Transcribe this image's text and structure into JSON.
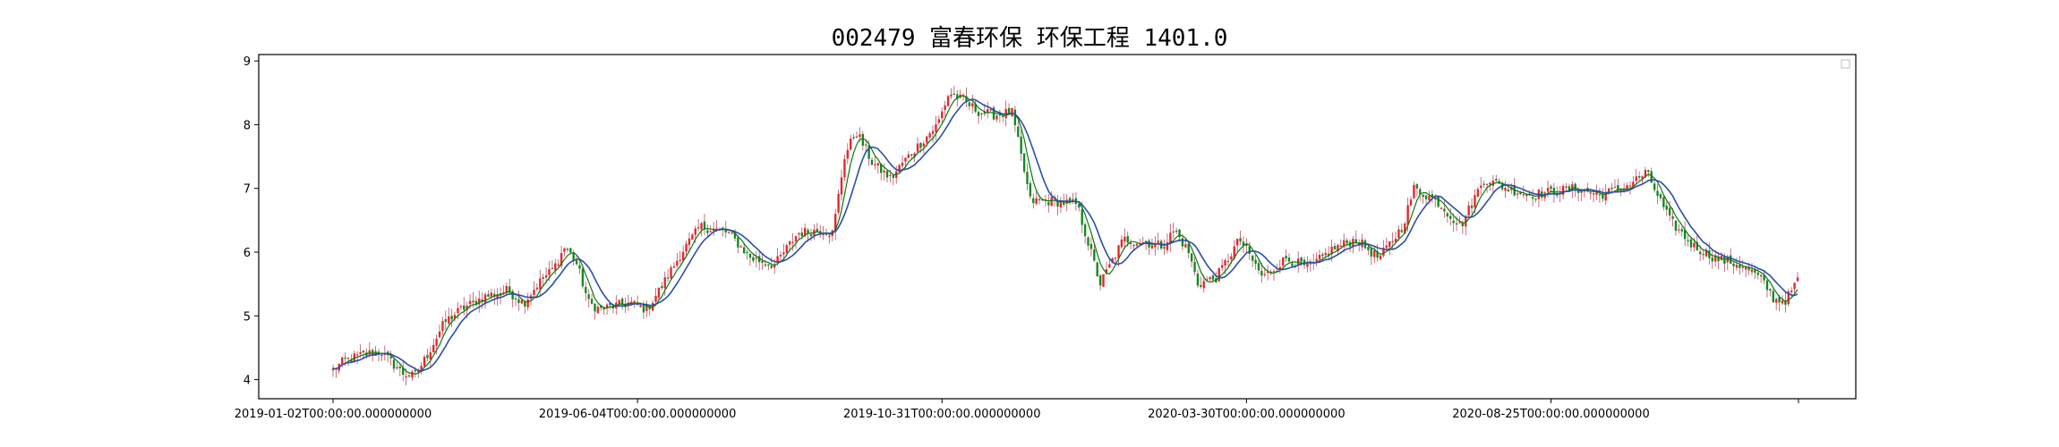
{
  "chart_data": {
    "type": "candlestick",
    "title": "002479 富春环保 环保工程 1401.0",
    "xlabel": "",
    "ylabel": "",
    "ylim": [
      3.7,
      9.1
    ],
    "yticks": [
      4,
      5,
      6,
      7,
      8,
      9
    ],
    "x_tick_labels": [
      "2019-01-02T00:00:00.000000000",
      "2019-06-04T00:00:00.000000000",
      "2019-10-31T00:00:00.000000000",
      "2020-03-30T00:00:00.000000000",
      "2020-08-25T00:00:00.000000000",
      ""
    ],
    "grid": false,
    "legend": "top-right (empty)",
    "colors": {
      "up": "#e8262b",
      "down": "#0f8a1e",
      "ma": "#2b4fa8",
      "ma_short": "#0b7a12",
      "wick": "#b05060"
    },
    "series": [
      {
        "kind": "close_path",
        "x": [
          0,
          5,
          12,
          20,
          30,
          35,
          40,
          48,
          55,
          65,
          75,
          82,
          88,
          95,
          100,
          105,
          110,
          115,
          120,
          128,
          135,
          142,
          150,
          158,
          165,
          170,
          180,
          190,
          200,
          210,
          215,
          220,
          225,
          232,
          240,
          245,
          250,
          260,
          265,
          270,
          278,
          285,
          292,
          300,
          310,
          320,
          330,
          340,
          350,
          357,
          362,
          368,
          372,
          380,
          390,
          400,
          410,
          420,
          430,
          440,
          450,
          460,
          465,
          475,
          485,
          495,
          505,
          515,
          525,
          535,
          545,
          555,
          565,
          575,
          585,
          595,
          605,
          610,
          615,
          620,
          625,
          630
        ],
        "y": [
          4.15,
          4.3,
          4.38,
          4.45,
          4.1,
          4.05,
          4.35,
          4.9,
          5.1,
          5.3,
          5.4,
          5.2,
          5.5,
          5.75,
          6.1,
          5.8,
          5.2,
          5.1,
          5.15,
          5.2,
          5.1,
          5.5,
          6.0,
          6.4,
          6.35,
          6.3,
          5.9,
          5.8,
          6.3,
          6.35,
          6.3,
          7.5,
          7.9,
          7.4,
          7.15,
          7.4,
          7.6,
          8.0,
          8.5,
          8.4,
          8.2,
          8.15,
          8.2,
          6.8,
          6.8,
          6.75,
          5.5,
          6.2,
          6.15,
          6.1,
          6.35,
          6.0,
          5.5,
          5.6,
          6.2,
          5.6,
          5.9,
          5.75,
          6.05,
          6.2,
          5.9,
          6.4,
          7.0,
          6.8,
          6.4,
          7.15,
          7.0,
          6.9,
          6.95,
          7.0,
          6.9,
          7.0,
          7.25,
          6.5,
          6.1,
          5.9,
          5.8,
          5.7,
          5.55,
          5.25,
          5.25,
          5.55
        ]
      }
    ]
  }
}
